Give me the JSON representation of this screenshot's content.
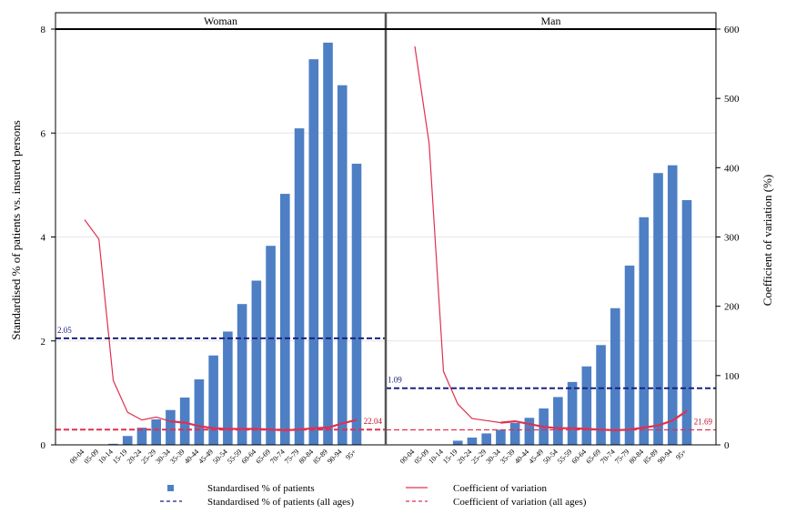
{
  "colors": {
    "bar": "#4e7fc4",
    "cv_line": "#e03050",
    "mean_dash": "#1a237e",
    "cv_mean_dash": "#e03050",
    "frame": "#000000",
    "grid": "#e6e6e6"
  },
  "chart_data": {
    "type": "bar",
    "ylabel": "Standardised % of patients vs. insured persons",
    "y2label": "Coefficient of variation (%)",
    "ylim": [
      0,
      8
    ],
    "y2lim": [
      0,
      600
    ],
    "yticks": [
      0,
      2,
      4,
      6,
      8
    ],
    "y2ticks": [
      0,
      100,
      200,
      300,
      400,
      500,
      600
    ],
    "grid": true,
    "categories": [
      "00-04",
      "05-09",
      "10-14",
      "15-19",
      "20-24",
      "25-29",
      "30-34",
      "35-39",
      "40-44",
      "45-49",
      "50-54",
      "55-59",
      "60-64",
      "65-69",
      "70-74",
      "75-79",
      "80-84",
      "85-89",
      "90-94",
      "95+"
    ],
    "panels": [
      {
        "name": "Woman",
        "values": [
          0,
          0,
          0.02,
          0.17,
          0.33,
          0.49,
          0.67,
          0.91,
          1.26,
          1.72,
          2.18,
          2.71,
          3.16,
          3.83,
          4.83,
          6.09,
          7.42,
          7.74,
          6.92,
          5.41
        ],
        "cv": [
          325,
          297,
          93,
          47,
          36,
          40,
          34,
          32,
          27,
          24,
          23,
          23,
          23,
          22,
          21,
          22,
          24,
          25,
          31,
          36
        ],
        "mean": 2.05,
        "mean_label": "2.05",
        "cv_mean": 22.04,
        "cv_mean_label": "22.04"
      },
      {
        "name": "Man",
        "values": [
          0,
          0,
          0,
          0.08,
          0.14,
          0.22,
          0.29,
          0.42,
          0.52,
          0.7,
          0.92,
          1.21,
          1.51,
          1.92,
          2.63,
          3.45,
          4.38,
          5.23,
          5.38,
          4.71
        ],
        "cv": [
          575,
          435,
          106,
          59,
          38,
          35,
          32,
          34,
          30,
          26,
          24,
          24,
          23,
          22,
          21,
          22,
          25,
          28,
          35,
          49
        ],
        "mean": 1.09,
        "mean_label": "1.09",
        "cv_mean": 21.69,
        "cv_mean_label": "21.69"
      }
    ],
    "legend": {
      "position": "bottom",
      "items": [
        {
          "label": "Standardised % of patients",
          "kind": "bar"
        },
        {
          "label": "Coefficient of variation",
          "kind": "cv_line"
        },
        {
          "label": "Standardised % of patients (all ages)",
          "kind": "mean_dash"
        },
        {
          "label": "Coefficient of variation (all ages)",
          "kind": "cv_mean_dash"
        }
      ]
    }
  }
}
